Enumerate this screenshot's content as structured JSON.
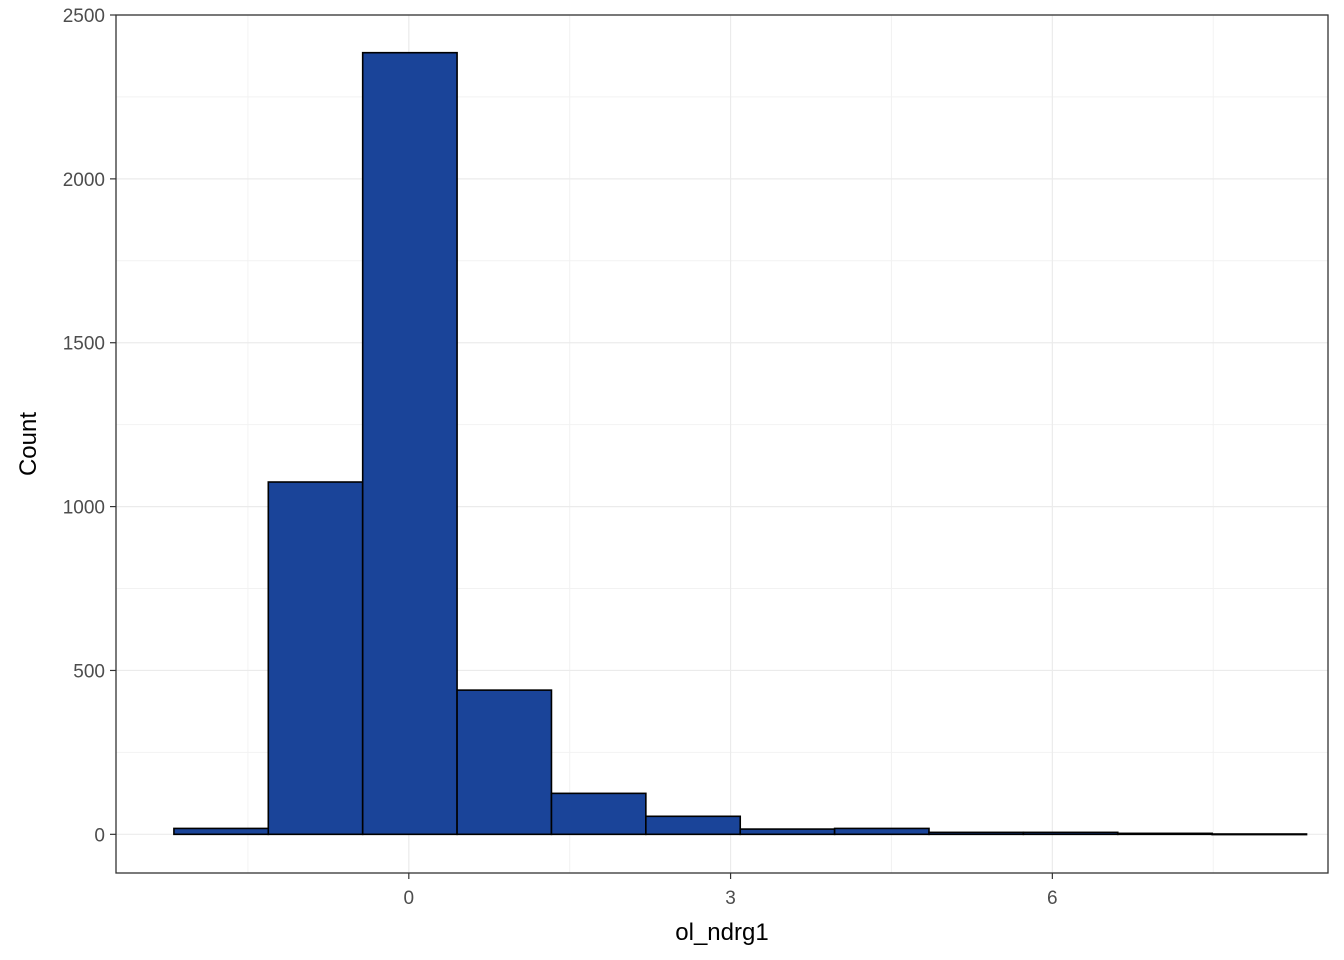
{
  "chart_data": {
    "type": "histogram",
    "title": "",
    "xlabel": "ol_ndrg1",
    "ylabel": "Count",
    "x_ticks": [
      0,
      3,
      6
    ],
    "x_tick_labels": [
      "0",
      "3",
      "6"
    ],
    "y_ticks": [
      0,
      500,
      1000,
      1500,
      2000,
      2500
    ],
    "y_tick_labels": [
      "0",
      "500",
      "1000",
      "1500",
      "2000",
      "2500"
    ],
    "xlim": [
      -2.73,
      8.57
    ],
    "ylim": [
      -118,
      2500
    ],
    "grid": true,
    "bins": [
      {
        "x0": -2.19,
        "x1": -1.31,
        "count": 18
      },
      {
        "x0": -1.31,
        "x1": -0.43,
        "count": 1075
      },
      {
        "x0": -0.43,
        "x1": 0.45,
        "count": 2385
      },
      {
        "x0": 0.45,
        "x1": 1.33,
        "count": 440
      },
      {
        "x0": 1.33,
        "x1": 2.21,
        "count": 125
      },
      {
        "x0": 2.21,
        "x1": 3.09,
        "count": 55
      },
      {
        "x0": 3.09,
        "x1": 3.97,
        "count": 16
      },
      {
        "x0": 3.97,
        "x1": 4.85,
        "count": 18
      },
      {
        "x0": 4.85,
        "x1": 5.73,
        "count": 6
      },
      {
        "x0": 5.73,
        "x1": 6.61,
        "count": 6
      },
      {
        "x0": 6.61,
        "x1": 7.49,
        "count": 3
      },
      {
        "x0": 7.49,
        "x1": 8.37,
        "count": 1
      }
    ],
    "colors": {
      "bar_fill": "#1A4499",
      "bar_stroke": "#000000",
      "grid_major": "#ebebeb",
      "grid_minor": "#f2f2f2",
      "panel_border": "#333333",
      "tick_label": "#4d4d4d"
    }
  }
}
